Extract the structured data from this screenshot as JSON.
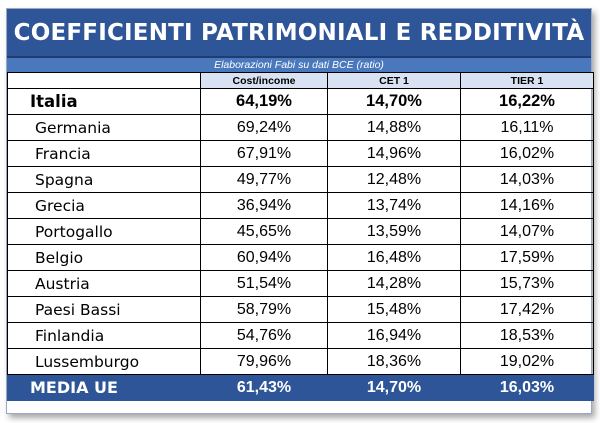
{
  "title": "COEFFICIENTI PATRIMONIALI E REDDITIVITÀ",
  "subtitle": "Elaborazioni Fabi su dati BCE (ratio)",
  "headers": [
    "",
    "Cost/income",
    "CET 1",
    "TIER 1"
  ],
  "rows": [
    {
      "country": "Italia",
      "cost_income": "64,19%",
      "cet1": "14,70%",
      "tier1": "16,22%"
    },
    {
      "country": "Germania",
      "cost_income": "69,24%",
      "cet1": "14,88%",
      "tier1": "16,11%"
    },
    {
      "country": "Francia",
      "cost_income": "67,91%",
      "cet1": "14,96%",
      "tier1": "16,02%"
    },
    {
      "country": "Spagna",
      "cost_income": "49,77%",
      "cet1": "12,48%",
      "tier1": "14,03%"
    },
    {
      "country": "Grecia",
      "cost_income": "36,94%",
      "cet1": "13,74%",
      "tier1": "14,16%"
    },
    {
      "country": "Portogallo",
      "cost_income": "45,65%",
      "cet1": "13,59%",
      "tier1": "14,07%"
    },
    {
      "country": "Belgio",
      "cost_income": "60,94%",
      "cet1": "16,48%",
      "tier1": "17,59%"
    },
    {
      "country": "Austria",
      "cost_income": "51,54%",
      "cet1": "14,28%",
      "tier1": "15,73%"
    },
    {
      "country": "Paesi Bassi",
      "cost_income": "58,79%",
      "cet1": "15,48%",
      "tier1": "17,42%"
    },
    {
      "country": "Finlandia",
      "cost_income": "54,76%",
      "cet1": "16,94%",
      "tier1": "18,53%"
    },
    {
      "country": "Lussemburgo",
      "cost_income": "79,96%",
      "cet1": "18,36%",
      "tier1": "19,02%"
    }
  ],
  "average": {
    "country": "MEDIA UE",
    "cost_income": "61,43%",
    "cet1": "14,70%",
    "tier1": "16,03%"
  },
  "colors": {
    "header_blue": "#2d5597",
    "subtitle_blue": "#4a78bd",
    "column_header_bg": "#d9e2f3"
  }
}
